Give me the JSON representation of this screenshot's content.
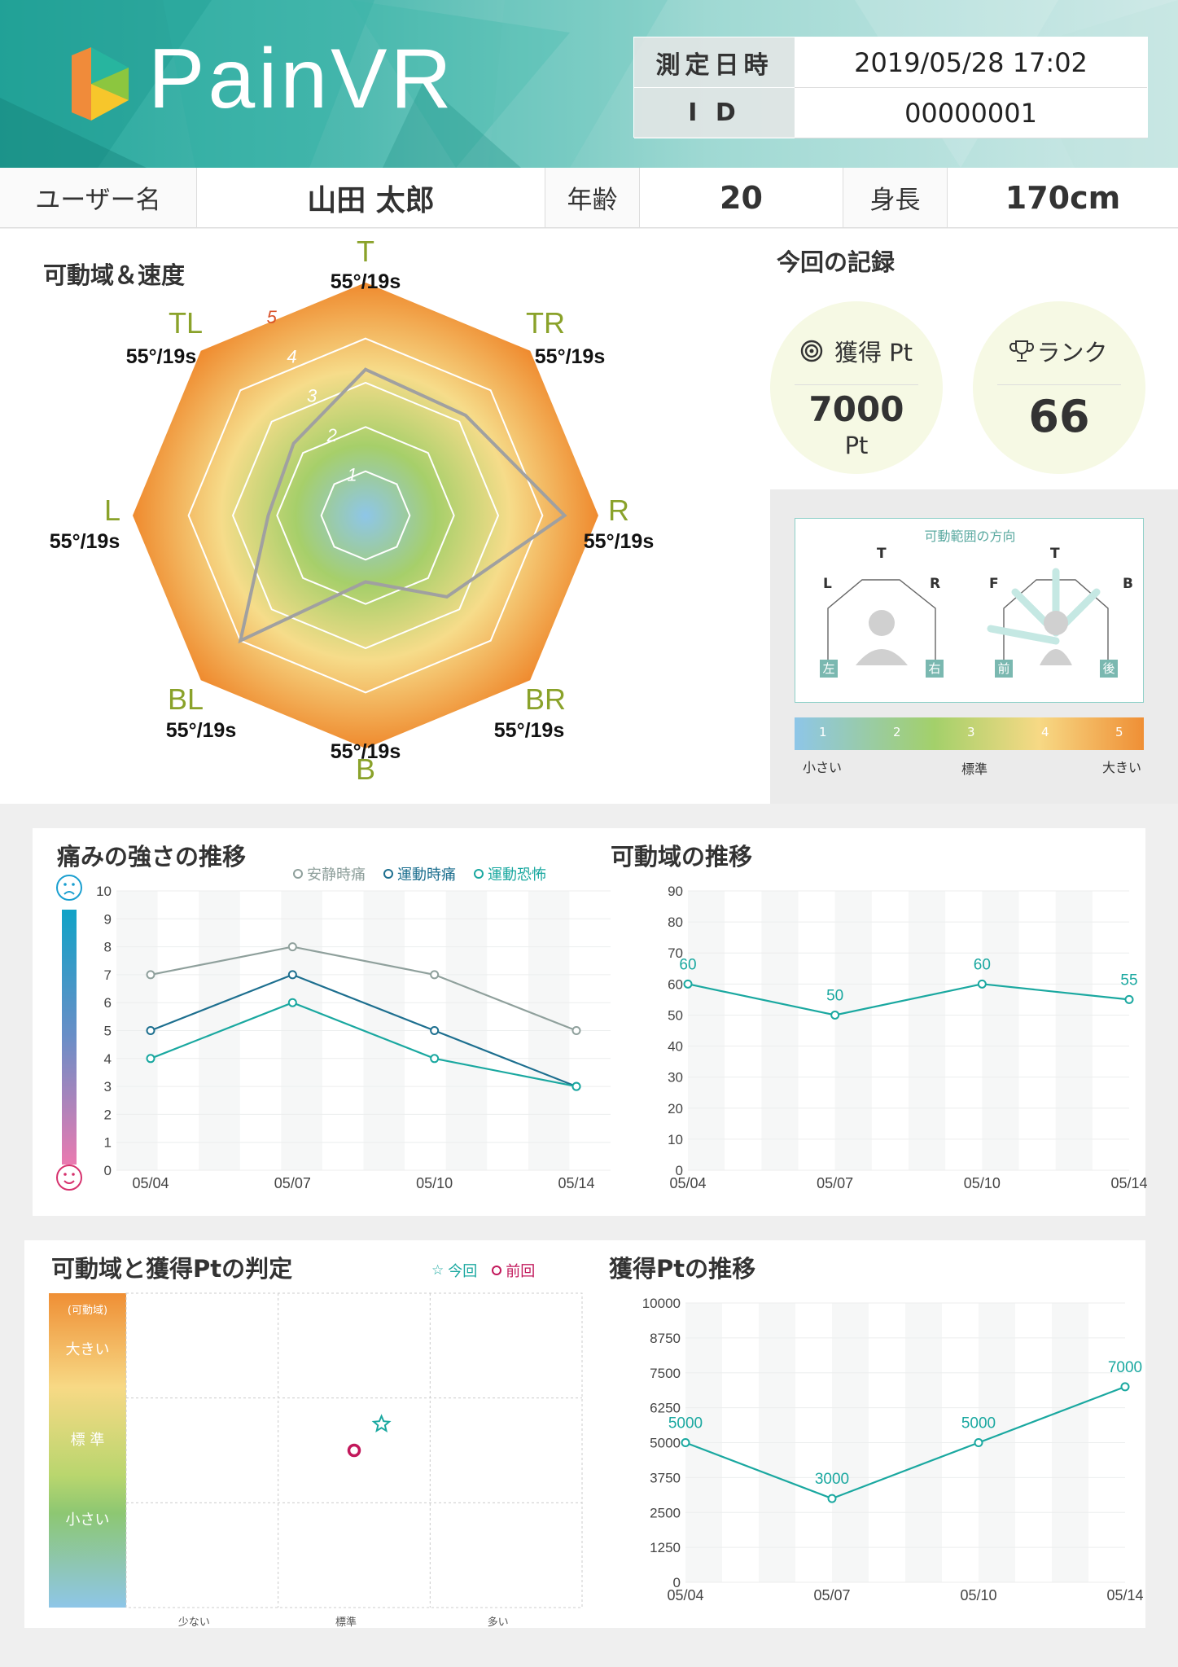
{
  "app": {
    "name": "PainVR"
  },
  "info": {
    "date_label": "測定日時",
    "date_value": "2019/05/28 17:02",
    "id_label": "I D",
    "id_value": "00000001"
  },
  "user": {
    "name_label": "ユーザー名",
    "name_value": "山田 太郎",
    "age_label": "年齢",
    "age_value": "20",
    "height_label": "身長",
    "height_value": "170cm"
  },
  "radar": {
    "title": "可動域＆速度",
    "ring_labels": [
      "1",
      "2",
      "3",
      "4",
      "5"
    ],
    "axes": [
      {
        "dir": "T",
        "value": "55°/19s"
      },
      {
        "dir": "TR",
        "value": "55°/19s"
      },
      {
        "dir": "R",
        "value": "55°/19s"
      },
      {
        "dir": "BR",
        "value": "55°/19s"
      },
      {
        "dir": "B",
        "value": "55°/19s"
      },
      {
        "dir": "BL",
        "value": "55°/19s"
      },
      {
        "dir": "L",
        "value": "55°/19s"
      },
      {
        "dir": "TL",
        "value": "55°/19s"
      }
    ],
    "chart_data": {
      "type": "radar",
      "categories": [
        "T",
        "TR",
        "R",
        "BR",
        "B",
        "BL",
        "L",
        "TL"
      ],
      "rmax": 5,
      "values": [
        3.3,
        3.2,
        4.5,
        2.6,
        1.5,
        4.0,
        2.2,
        2.3
      ]
    }
  },
  "record": {
    "title": "今回の記録",
    "points_label": "獲得 Pt",
    "points_value": "7000",
    "points_unit": "Pt",
    "rank_label": "ランク",
    "rank_value": "66"
  },
  "direction": {
    "title": "可動範囲の方向",
    "front": {
      "t": "T",
      "l": "L",
      "r": "R",
      "left": "左",
      "right": "右"
    },
    "side": {
      "t": "T",
      "f": "F",
      "b": "B",
      "front": "前",
      "back": "後"
    },
    "scale_numbers": [
      "1",
      "2",
      "3",
      "4",
      "5"
    ],
    "scale_small": "小さい",
    "scale_normal": "標準",
    "scale_big": "大きい"
  },
  "pain": {
    "title": "痛みの強さの推移",
    "legend": [
      "安静時痛",
      "運動時痛",
      "運動恐怖"
    ],
    "colors": [
      "#8fa09c",
      "#1d6f8f",
      "#1aa8a0"
    ],
    "chart_data": {
      "type": "line",
      "categories": [
        "05/04",
        "05/07",
        "05/10",
        "05/14"
      ],
      "ylim": [
        0,
        10
      ],
      "yticks": [
        "0",
        "1",
        "2",
        "3",
        "4",
        "5",
        "6",
        "7",
        "8",
        "9",
        "10"
      ],
      "series": [
        {
          "name": "安静時痛",
          "values": [
            7,
            8,
            7,
            5
          ]
        },
        {
          "name": "運動時痛",
          "values": [
            5,
            7,
            5,
            3
          ]
        },
        {
          "name": "運動恐怖",
          "values": [
            4,
            6,
            4,
            3
          ]
        }
      ]
    }
  },
  "rom": {
    "title": "可動域の推移",
    "color": "#1aa8a0",
    "chart_data": {
      "type": "line",
      "categories": [
        "05/04",
        "05/07",
        "05/10",
        "05/14"
      ],
      "ylim": [
        0,
        90
      ],
      "yticks": [
        "0",
        "10",
        "20",
        "30",
        "40",
        "50",
        "60",
        "70",
        "80",
        "90"
      ],
      "series": [
        {
          "values": [
            60,
            50,
            60,
            55
          ]
        }
      ],
      "labels": [
        "60",
        "50",
        "60",
        "55"
      ]
    }
  },
  "judge": {
    "title": "可動域と獲得Ptの判定",
    "legend_current": "今回",
    "legend_prev": "前回",
    "y_caption": "(可動域)",
    "y_big": "大きい",
    "y_normal": "標 準",
    "y_small": "小さい",
    "x_labels": [
      "少ない",
      "標準",
      "多い"
    ],
    "chart_data": {
      "type": "scatter",
      "xlim": [
        0,
        3
      ],
      "ylim": [
        0,
        3
      ],
      "series": [
        {
          "name": "今回",
          "x": [
            1.68
          ],
          "y": [
            1.75
          ]
        },
        {
          "name": "前回",
          "x": [
            1.5
          ],
          "y": [
            1.5
          ]
        }
      ]
    }
  },
  "ptchart": {
    "title": "獲得Ptの推移",
    "color": "#1aa8a0",
    "chart_data": {
      "type": "line",
      "categories": [
        "05/04",
        "05/07",
        "05/10",
        "05/14"
      ],
      "ylim": [
        0,
        10000
      ],
      "yticks": [
        "0",
        "1250",
        "2500",
        "3750",
        "5000",
        "6250",
        "7500",
        "8750",
        "10000"
      ],
      "series": [
        {
          "values": [
            5000,
            3000,
            5000,
            7000
          ]
        }
      ],
      "labels": [
        "5000",
        "3000",
        "5000",
        "7000"
      ]
    }
  }
}
